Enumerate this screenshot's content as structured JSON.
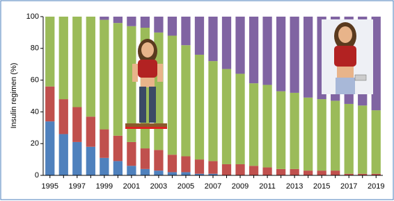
{
  "chart_data": {
    "type": "stacked-bar",
    "y_label": "Insulin regimen (%)",
    "categories": [
      "1995",
      null,
      "1997",
      null,
      "1999",
      null,
      "2001",
      null,
      "2003",
      null,
      "2005",
      null,
      "2007",
      null,
      "2009",
      null,
      "2011",
      null,
      "2013",
      null,
      "2015",
      null,
      "2017",
      null,
      "2019"
    ],
    "series": [
      {
        "color": "#4f81bd",
        "values": [
          34,
          26,
          21,
          18,
          11,
          9,
          6,
          4,
          3,
          2,
          2,
          1,
          1,
          0,
          0,
          0,
          0,
          0,
          0,
          0,
          0,
          0,
          0,
          0,
          0
        ]
      },
      {
        "color": "#c0504d",
        "values": [
          22,
          22,
          22,
          19,
          18,
          16,
          15,
          13,
          13,
          11,
          10,
          9,
          8,
          7,
          7,
          6,
          5,
          4,
          4,
          3,
          3,
          3,
          1,
          1,
          1
        ]
      },
      {
        "color": "#9bbb59",
        "values": [
          44,
          52,
          57,
          63,
          69,
          71,
          73,
          76,
          74,
          75,
          70,
          66,
          63,
          60,
          57,
          52,
          52,
          49,
          48,
          46,
          45,
          44,
          44,
          43,
          40
        ]
      },
      {
        "color": "#8064a2",
        "values": [
          0,
          0,
          0,
          0,
          2,
          4,
          6,
          7,
          10,
          12,
          18,
          24,
          28,
          33,
          36,
          42,
          43,
          47,
          48,
          51,
          52,
          53,
          55,
          56,
          59
        ]
      }
    ],
    "ylim": [
      0,
      100
    ],
    "yticks": [
      0,
      20,
      40,
      60,
      80,
      100
    ]
  }
}
